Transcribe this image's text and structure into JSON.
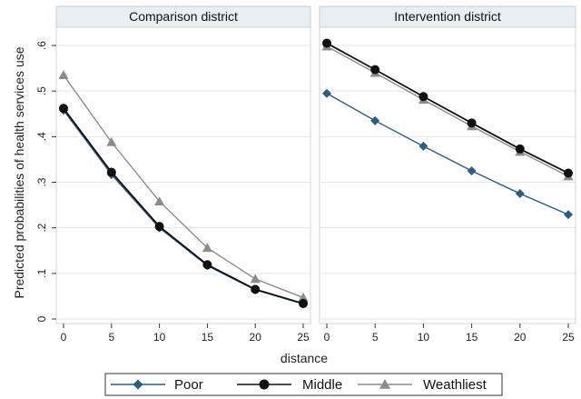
{
  "chart_data": {
    "type": "line",
    "ylabel": "Predicted probabilities of health services use",
    "xlabel": "distance",
    "x": [
      0,
      5,
      10,
      15,
      20,
      25
    ],
    "xticks": [
      "0",
      "5",
      "10",
      "15",
      "20",
      "25"
    ],
    "ylim": [
      -0.01,
      0.64
    ],
    "yticks": [
      0,
      0.1,
      0.2,
      0.3,
      0.4,
      0.5,
      0.6
    ],
    "ytick_labels": [
      "0",
      ".1",
      ".2",
      ".3",
      ".4",
      ".5",
      ".6"
    ],
    "grid": true,
    "legend_position": "bottom",
    "series_style": [
      {
        "color": "#2f5d7c",
        "marker": "diamond"
      },
      {
        "color": "#111111",
        "marker": "circle"
      },
      {
        "color": "#8c8c8c",
        "marker": "triangle"
      }
    ],
    "legend": [
      "Poor",
      "Middle",
      "Weathliest"
    ],
    "panels": [
      {
        "title": "Comparison district",
        "series": [
          {
            "name": "Poor",
            "values": [
              0.458,
              0.317,
              0.2,
              0.117,
              0.064,
              0.033
            ]
          },
          {
            "name": "Middle",
            "values": [
              0.462,
              0.322,
              0.203,
              0.119,
              0.065,
              0.034
            ]
          },
          {
            "name": "Weathliest",
            "values": [
              0.535,
              0.388,
              0.258,
              0.156,
              0.088,
              0.047
            ]
          }
        ]
      },
      {
        "title": "Intervention district",
        "series": [
          {
            "name": "Poor",
            "values": [
              0.495,
              0.435,
              0.379,
              0.325,
              0.275,
              0.229
            ]
          },
          {
            "name": "Middle",
            "values": [
              0.605,
              0.547,
              0.488,
              0.43,
              0.373,
              0.32
            ]
          },
          {
            "name": "Weathliest",
            "values": [
              0.598,
              0.54,
              0.481,
              0.423,
              0.367,
              0.313
            ]
          }
        ]
      }
    ]
  }
}
